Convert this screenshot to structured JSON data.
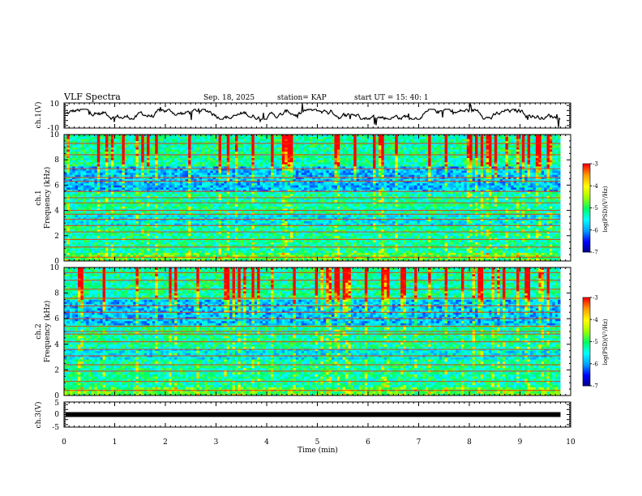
{
  "header": {
    "title": "VLF Spectra",
    "date": "Sep. 18, 2025",
    "station": "station= KAP",
    "start": "start  UT  =   15: 40: 1"
  },
  "chart_data": {
    "type": "heatmap",
    "x_axis": {
      "label": "Time  (min)",
      "range": [
        0,
        10
      ],
      "ticks": [
        0,
        1,
        2,
        3,
        4,
        5,
        6,
        7,
        8,
        9,
        10
      ],
      "data_end": 9.8
    },
    "panels": [
      {
        "id": "ch1-waveform",
        "type": "line",
        "ylabel": "ch.1(V)",
        "ylim": [
          -10,
          10
        ],
        "yticks": [
          10,
          -10
        ],
        "trace_level_band": [
          -3,
          5
        ]
      },
      {
        "id": "ch1-spectrogram",
        "type": "heatmap",
        "ylabel": [
          "ch.1",
          "Frequency  (kHz)"
        ],
        "ylim": [
          0,
          10
        ],
        "yticks": [
          0,
          2,
          4,
          6,
          8,
          10
        ],
        "colorbar": {
          "label": "log(PSD)(V²/Hz)",
          "range": [
            -7,
            -3
          ],
          "ticks": [
            -3,
            -4,
            -5,
            -6,
            -7
          ]
        },
        "persistent_lines_khz": [
          0.3,
          1.1,
          1.7,
          2.3,
          2.8,
          3.3,
          3.7,
          4.0,
          4.6,
          5.0,
          5.5,
          6.3,
          6.6,
          7.3,
          8.4,
          9.3
        ]
      },
      {
        "id": "ch2-spectrogram",
        "type": "heatmap",
        "ylabel": [
          "ch.2",
          "Frequency  (kHz)"
        ],
        "ylim": [
          0,
          10
        ],
        "yticks": [
          0,
          2,
          4,
          6,
          8,
          10
        ],
        "colorbar": {
          "label": "log(PSD)(V²/Hz)",
          "range": [
            -7,
            -3
          ],
          "ticks": [
            -3,
            -4,
            -5,
            -6,
            -7
          ]
        },
        "persistent_lines_khz": [
          0.4,
          1.1,
          1.9,
          2.4,
          3.1,
          3.6,
          4.2,
          4.8,
          5.0,
          5.4,
          6.0,
          6.5,
          7.0,
          7.6,
          8.3,
          9.0,
          9.6
        ]
      },
      {
        "id": "ch3-waveform",
        "type": "line",
        "ylabel": "ch.3(V)",
        "ylim": [
          -5,
          5
        ],
        "yticks": [
          5,
          0,
          -5
        ],
        "trace_level": 0
      }
    ],
    "colormap": [
      "#000080",
      "#0000ff",
      "#00a0ff",
      "#00ffff",
      "#00ff60",
      "#a0ff00",
      "#ffff00",
      "#ffa000",
      "#ff0000",
      "#ffffff"
    ],
    "grid": false,
    "legend": "right"
  }
}
